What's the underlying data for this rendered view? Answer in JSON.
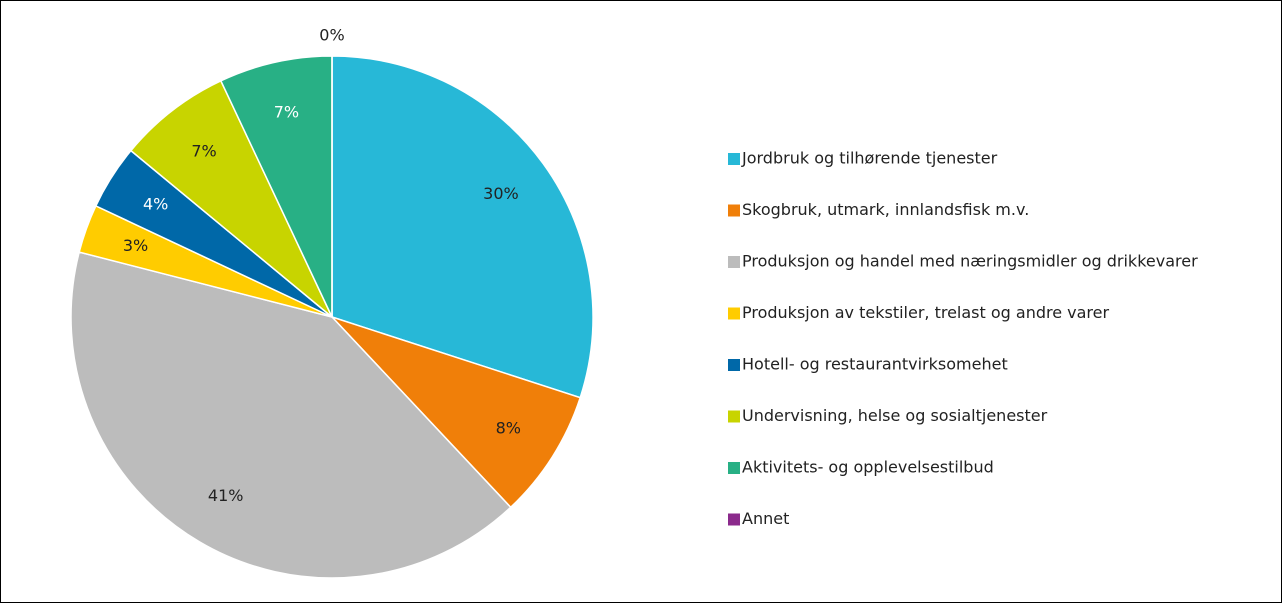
{
  "chart_data": {
    "type": "pie",
    "categories": [
      "Jordbruk og tilhørende tjenester",
      "Skogbruk, utmark, innlandsfisk m.v.",
      "Produksjon og handel med næringsmidler og drikkevarer",
      "Produksjon av tekstiler, trelast og andre varer",
      "Hotell- og restaurantvirksomehet",
      "Undervisning, helse og sosialtjenester",
      "Aktivitets- og opplevelsestilbud",
      "Annet"
    ],
    "values": [
      30,
      8,
      41,
      3,
      4,
      7,
      7,
      0
    ],
    "value_labels": [
      "30%",
      "8%",
      "41%",
      "3%",
      "4%",
      "7%",
      "7%",
      "0%"
    ],
    "colors": [
      "#27b8d7",
      "#f07f09",
      "#bcbcbc",
      "#ffcc00",
      "#0068a8",
      "#c8d400",
      "#28b085",
      "#8b2a8c"
    ],
    "legend": "right"
  }
}
